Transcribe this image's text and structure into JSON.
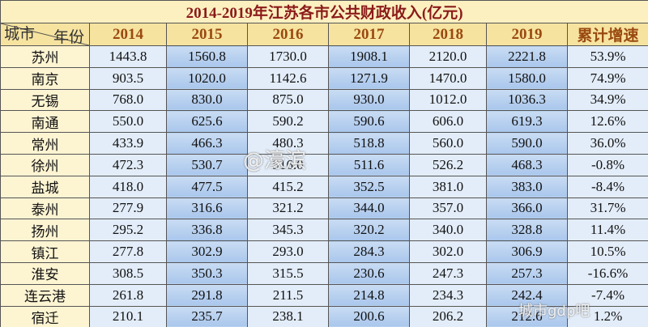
{
  "title": "2014-2019年江苏各市公共财政收入(亿元)",
  "table": {
    "corner": {
      "row_label": "城市",
      "col_label": "年份"
    },
    "columns": [
      "2014",
      "2015",
      "2016",
      "2017",
      "2018",
      "2019",
      "累计增速"
    ],
    "rows": [
      [
        "苏州",
        "1443.8",
        "1560.8",
        "1730.0",
        "1908.1",
        "2120.0",
        "2221.8",
        "53.9%"
      ],
      [
        "南京",
        "903.5",
        "1020.0",
        "1142.6",
        "1271.9",
        "1470.0",
        "1580.0",
        "74.9%"
      ],
      [
        "无锡",
        "768.0",
        "830.0",
        "875.0",
        "930.0",
        "1012.0",
        "1036.3",
        "34.9%"
      ],
      [
        "南通",
        "550.0",
        "625.6",
        "590.2",
        "590.6",
        "606.0",
        "619.3",
        "12.6%"
      ],
      [
        "常州",
        "433.9",
        "466.3",
        "480.3",
        "518.8",
        "560.0",
        "590.0",
        "36.0%"
      ],
      [
        "徐州",
        "472.3",
        "530.7",
        "516.0",
        "511.6",
        "526.2",
        "468.3",
        "-0.8%"
      ],
      [
        "盐城",
        "418.0",
        "477.5",
        "415.2",
        "352.5",
        "381.0",
        "383.0",
        "-8.4%"
      ],
      [
        "泰州",
        "277.9",
        "316.6",
        "321.2",
        "344.0",
        "357.0",
        "366.0",
        "31.7%"
      ],
      [
        "扬州",
        "295.2",
        "336.8",
        "345.3",
        "320.2",
        "340.0",
        "328.8",
        "11.4%"
      ],
      [
        "镇江",
        "277.8",
        "302.9",
        "293.0",
        "284.3",
        "302.0",
        "306.9",
        "10.5%"
      ],
      [
        "淮安",
        "308.5",
        "350.3",
        "315.5",
        "230.6",
        "247.3",
        "257.3",
        "-16.6%"
      ],
      [
        "连云港",
        "261.8",
        "291.8",
        "211.5",
        "214.8",
        "234.3",
        "242.4",
        "-7.4%"
      ],
      [
        "宿迁",
        "210.1",
        "235.7",
        "238.1",
        "200.6",
        "206.2",
        "212.6",
        "1.2%"
      ]
    ]
  },
  "watermarks": [
    "@濠滨",
    "城市gdp吧"
  ]
}
